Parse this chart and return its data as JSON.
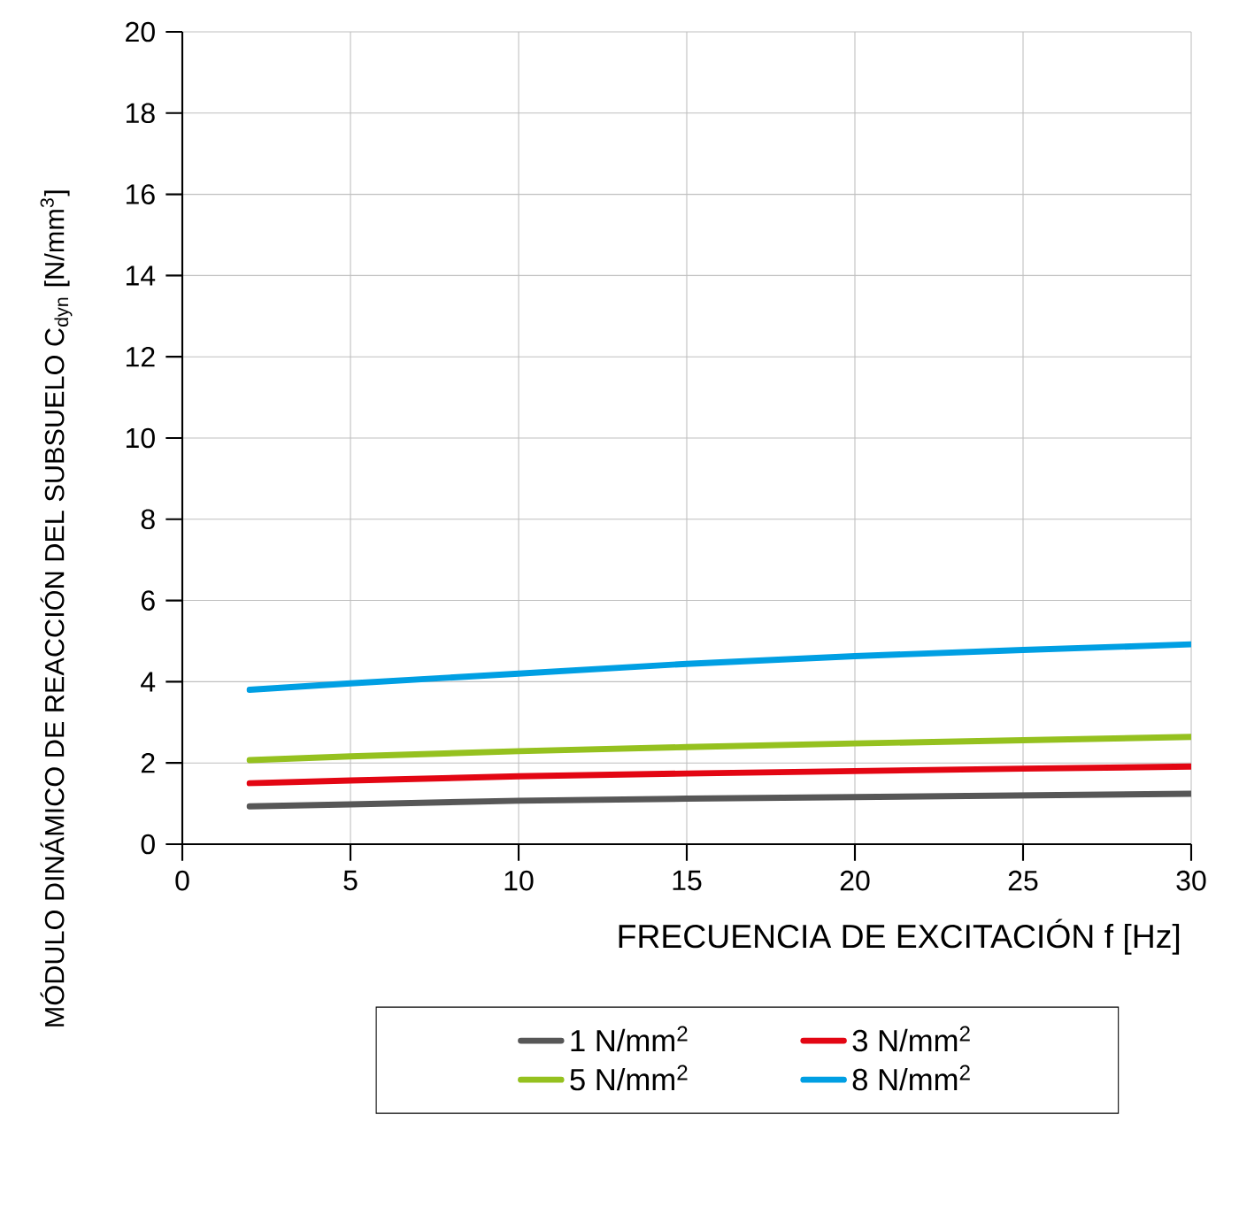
{
  "chart_data": {
    "type": "line",
    "xlabel": "FRECUENCIA DE EXCITACIÓN f [Hz]",
    "ylabel": "MÓDULO DINÁMICO DE REACCIÓN DEL SUBSUELO C$_{dyn}$ [N/mm$^{3}$]",
    "x": [
      2,
      5,
      10,
      15,
      20,
      25,
      30
    ],
    "series": [
      {
        "name": "1 N/mm$^{2}$",
        "color": "#575757",
        "values": [
          0.93,
          0.98,
          1.07,
          1.12,
          1.16,
          1.2,
          1.24
        ]
      },
      {
        "name": "3 N/mm$^{2}$",
        "color": "#e30613",
        "values": [
          1.5,
          1.57,
          1.67,
          1.74,
          1.8,
          1.86,
          1.91
        ]
      },
      {
        "name": "5 N/mm$^{2}$",
        "color": "#95c11f",
        "values": [
          2.07,
          2.16,
          2.29,
          2.39,
          2.48,
          2.56,
          2.64
        ]
      },
      {
        "name": "8 N/mm$^{2}$",
        "color": "#009fe3",
        "values": [
          3.8,
          3.96,
          4.2,
          4.44,
          4.63,
          4.78,
          4.92
        ]
      }
    ],
    "xlim": [
      0,
      30
    ],
    "xticks": [
      0,
      5,
      10,
      15,
      20,
      25,
      30
    ],
    "ylim": [
      0,
      20
    ],
    "yticks": [
      0,
      2,
      4,
      6,
      8,
      10,
      12,
      14,
      16,
      18,
      20
    ],
    "grid": true,
    "legend": "bottom",
    "marker": "none",
    "line_style": "solid"
  }
}
